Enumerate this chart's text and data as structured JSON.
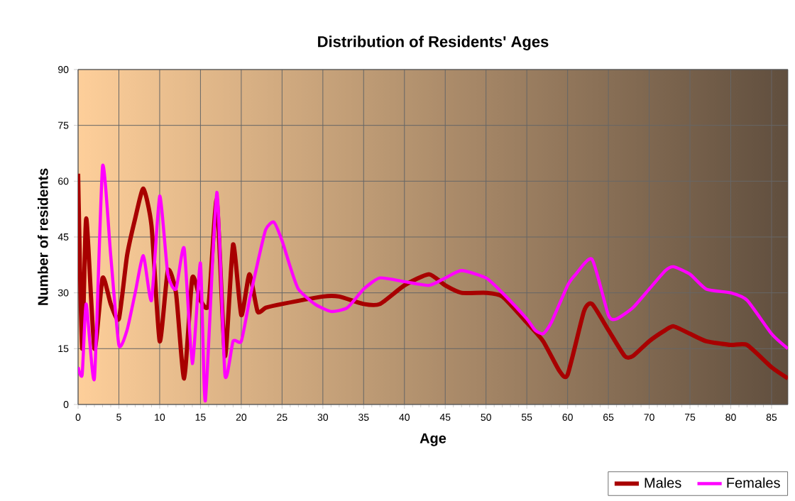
{
  "chart_data": {
    "type": "line",
    "title": "Distribution of Residents' Ages",
    "xlabel": "Age",
    "ylabel": "Number of residents",
    "xlim": [
      0,
      87
    ],
    "xticks": [
      0,
      5,
      10,
      15,
      20,
      25,
      30,
      35,
      40,
      45,
      50,
      55,
      60,
      65,
      70,
      75,
      80,
      85
    ],
    "ylim": [
      0,
      90
    ],
    "yticks": [
      0,
      15,
      30,
      45,
      60,
      75,
      90
    ],
    "grid": true,
    "legend": "bottom right",
    "marker": "none",
    "line_style": "solid",
    "series": [
      {
        "name": "Males",
        "color": "#a80000",
        "x": [
          0,
          0.5,
          1,
          2,
          3,
          4,
          5,
          6,
          7,
          8,
          9,
          10,
          11,
          12,
          13,
          14,
          15,
          16,
          17,
          18,
          19,
          20,
          21,
          22,
          23,
          25,
          30,
          32,
          35,
          37,
          40,
          43,
          45,
          47,
          50,
          52,
          55,
          57,
          59,
          60,
          62,
          63,
          65,
          67,
          68,
          70,
          72,
          73,
          75,
          77,
          80,
          82,
          85,
          87
        ],
        "values": [
          62,
          15,
          50,
          15,
          34,
          27,
          23,
          40,
          50,
          58,
          48,
          17,
          36,
          30,
          7,
          34,
          28,
          27,
          55,
          13,
          43,
          24,
          35,
          25,
          26,
          27,
          29,
          29,
          27,
          27,
          32,
          35,
          32,
          30,
          30,
          29,
          22,
          17,
          9,
          8,
          25,
          27,
          20,
          13,
          13,
          17,
          20,
          21,
          19,
          17,
          16,
          16,
          10,
          7
        ]
      },
      {
        "name": "Females",
        "color": "#ff00ff",
        "x": [
          0,
          0.5,
          1,
          2,
          3,
          4,
          5,
          6,
          7,
          8,
          9,
          10,
          11,
          12,
          13,
          14,
          15,
          15.6,
          17,
          18,
          19,
          20,
          21,
          22,
          23,
          24,
          25,
          26,
          27,
          29,
          31,
          33,
          35,
          37,
          40,
          43,
          45,
          47,
          50,
          52,
          55,
          56,
          57,
          58,
          60,
          61,
          63,
          65,
          66,
          68,
          70,
          72,
          73,
          75,
          77,
          80,
          82,
          85,
          87
        ],
        "values": [
          10,
          8,
          27,
          7,
          64,
          40,
          16,
          20,
          30,
          40,
          28,
          56,
          35,
          31,
          42,
          11,
          38,
          1,
          57,
          8,
          17,
          17,
          28,
          38,
          47,
          49,
          44,
          37,
          31,
          27,
          25,
          26,
          31,
          34,
          33,
          32,
          34,
          36,
          34,
          30,
          23,
          20,
          19,
          22,
          32,
          35,
          39,
          24,
          23,
          26,
          31,
          36,
          37,
          35,
          31,
          30,
          28,
          19,
          15
        ]
      }
    ]
  }
}
